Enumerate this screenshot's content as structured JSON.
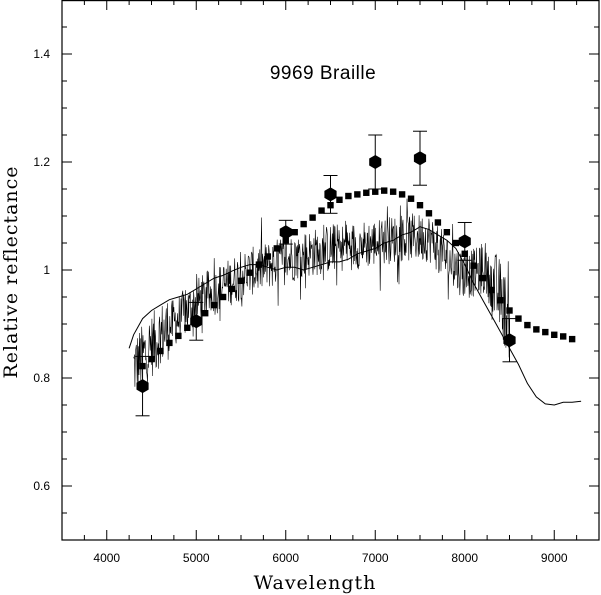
{
  "chart_data": {
    "type": "line",
    "title": "9969 Braille",
    "xlabel": "Wavelength",
    "ylabel": "Relative reflectance",
    "xlim": [
      3500,
      9500
    ],
    "ylim": [
      0.5,
      1.5
    ],
    "x_ticks": [
      4000,
      5000,
      6000,
      7000,
      8000,
      9000
    ],
    "y_ticks": [
      0.6,
      0.8,
      1,
      1.2,
      1.4
    ],
    "grid": false,
    "legend": "none",
    "series": [
      {
        "style": "noisy-spectrum",
        "color": "#000000",
        "x_range": [
          4300,
          8500
        ],
        "trend": [
          [
            4300,
            0.82
          ],
          [
            4600,
            0.88
          ],
          [
            5000,
            0.94
          ],
          [
            5500,
            0.99
          ],
          [
            6000,
            1.02
          ],
          [
            6500,
            1.04
          ],
          [
            7000,
            1.05
          ],
          [
            7300,
            1.06
          ],
          [
            7600,
            1.06
          ],
          [
            7800,
            1.02
          ],
          [
            8000,
            0.99
          ],
          [
            8200,
            1.0
          ],
          [
            8400,
            0.95
          ],
          [
            8500,
            0.9
          ]
        ]
      },
      {
        "style": "smooth-line",
        "color": "#000000",
        "x": [
          4250,
          4300,
          4400,
          4500,
          4600,
          4700,
          4800,
          4900,
          5000,
          5100,
          5200,
          5300,
          5400,
          5500,
          5600,
          5700,
          5800,
          5900,
          6000,
          6100,
          6200,
          6300,
          6400,
          6500,
          6600,
          6700,
          6800,
          6900,
          7000,
          7100,
          7200,
          7300,
          7400,
          7500,
          7600,
          7700,
          7800,
          7900,
          8000,
          8100,
          8200,
          8300,
          8400,
          8500,
          8600,
          8700,
          8800,
          8900,
          9000,
          9100,
          9200,
          9300
        ],
        "y": [
          0.855,
          0.88,
          0.91,
          0.925,
          0.935,
          0.945,
          0.95,
          0.955,
          0.965,
          0.975,
          0.985,
          0.99,
          0.998,
          1.005,
          1.01,
          1.01,
          1.005,
          1.0,
          1.005,
          1.005,
          1.0,
          1.005,
          1.01,
          1.015,
          1.015,
          1.02,
          1.03,
          1.035,
          1.04,
          1.05,
          1.055,
          1.065,
          1.07,
          1.08,
          1.075,
          1.065,
          1.055,
          1.04,
          1.01,
          0.975,
          0.945,
          0.915,
          0.885,
          0.855,
          0.825,
          0.79,
          0.765,
          0.752,
          0.75,
          0.755,
          0.755,
          0.757
        ]
      },
      {
        "style": "square-markers",
        "color": "#000000",
        "x": [
          4400,
          4500,
          4600,
          4700,
          4800,
          4900,
          5000,
          5100,
          5200,
          5300,
          5400,
          5500,
          5600,
          5700,
          5800,
          5900,
          6000,
          6100,
          6200,
          6300,
          6400,
          6500,
          6600,
          6700,
          6800,
          6900,
          7000,
          7100,
          7200,
          7300,
          7400,
          7500,
          7600,
          7700,
          7800,
          7900,
          8000,
          8100,
          8200,
          8300,
          8400,
          8500,
          8600,
          8700,
          8800,
          8900,
          9000,
          9100,
          9200
        ],
        "y": [
          0.822,
          0.835,
          0.85,
          0.865,
          0.878,
          0.893,
          0.907,
          0.92,
          0.935,
          0.95,
          0.965,
          0.98,
          0.995,
          1.01,
          1.025,
          1.04,
          1.055,
          1.07,
          1.085,
          1.097,
          1.11,
          1.12,
          1.13,
          1.137,
          1.14,
          1.143,
          1.145,
          1.147,
          1.145,
          1.14,
          1.132,
          1.12,
          1.105,
          1.088,
          1.07,
          1.05,
          1.03,
          1.008,
          0.985,
          0.963,
          0.944,
          0.925,
          0.91,
          0.898,
          0.89,
          0.885,
          0.88,
          0.877,
          0.872
        ]
      },
      {
        "style": "hexagon-markers-with-errorbars",
        "color": "#000000",
        "x": [
          4400,
          5000,
          6000,
          6500,
          7000,
          7500,
          8000,
          8500
        ],
        "y": [
          0.785,
          0.905,
          1.07,
          1.14,
          1.2,
          1.207,
          1.053,
          0.87
        ],
        "err": [
          0.055,
          0.035,
          0.022,
          0.035,
          0.05,
          0.05,
          0.035,
          0.04
        ]
      }
    ]
  }
}
